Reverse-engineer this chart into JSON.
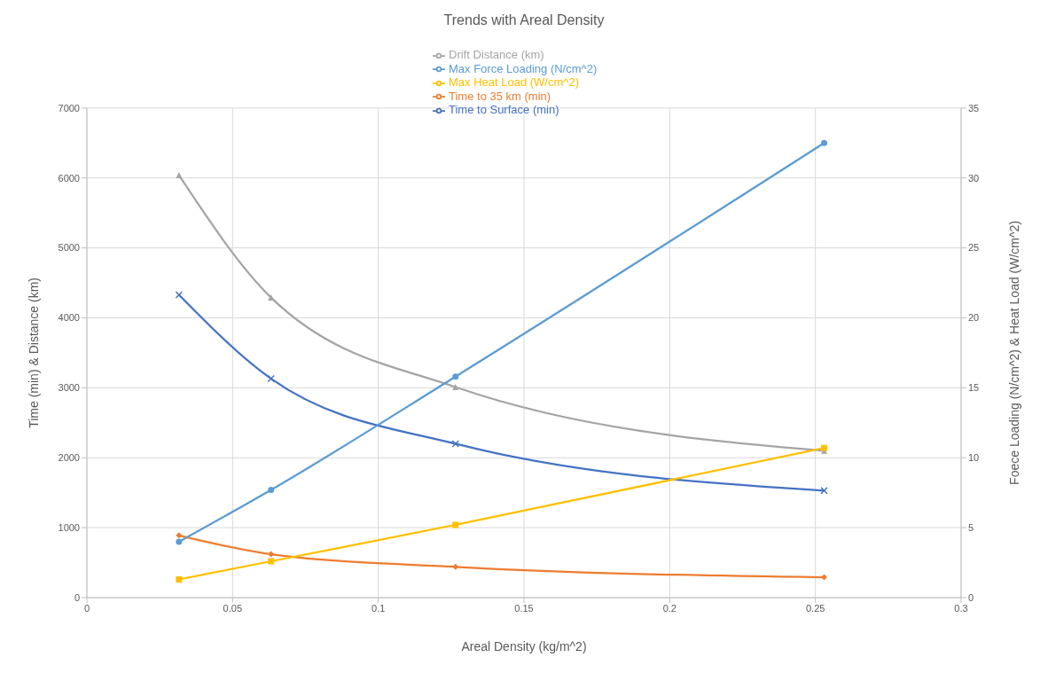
{
  "chart_data": {
    "type": "line",
    "title": "Trends with Areal Density",
    "xlabel": "Areal Density (kg/m^2)",
    "ylabel": "Time (min) & Distance (km)",
    "y2label": "Foece Loading (N/cm^2) &  Heat Load (W/cm^2)",
    "x": [
      0.0316,
      0.0632,
      0.1265,
      0.253
    ],
    "series": [
      {
        "name": "Time to Surface (min)",
        "color": "#4472c4",
        "marker": "cross",
        "values": [
          4330,
          3130,
          2200,
          1530
        ]
      },
      {
        "name": "Time to 35 km (min)",
        "color": "#ed7d31",
        "marker": "diamond",
        "values": [
          890,
          620,
          440,
          290
        ]
      },
      {
        "name": "Drift Distance (km)",
        "color": "#a5a5a5",
        "marker": "triangle",
        "values": [
          6040,
          4290,
          3010,
          2100
        ]
      },
      {
        "name": "Max Heat Load (W/cm^2)",
        "color": "#ffc000",
        "marker": "square",
        "axis": "y2",
        "values": [
          1.3,
          2.6,
          5.2,
          10.7
        ]
      },
      {
        "name": "Max Force Loading (N/cm^2)",
        "color": "#5b9bd5",
        "marker": "circle",
        "axis": "y2",
        "values": [
          4.0,
          7.7,
          15.8,
          32.5
        ]
      }
    ],
    "xlim": [
      0,
      0.3
    ],
    "xticks": [
      0,
      0.05,
      0.1,
      0.15,
      0.2,
      0.25,
      0.3
    ],
    "ylim": [
      0,
      7000
    ],
    "yticks": [
      0,
      1000,
      2000,
      3000,
      4000,
      5000,
      6000,
      7000
    ],
    "y2lim": [
      0,
      35
    ],
    "y2ticks": [
      0,
      5,
      10,
      15,
      20,
      25,
      30,
      35
    ],
    "grid": true,
    "legend": "top",
    "line_style": "solid"
  }
}
